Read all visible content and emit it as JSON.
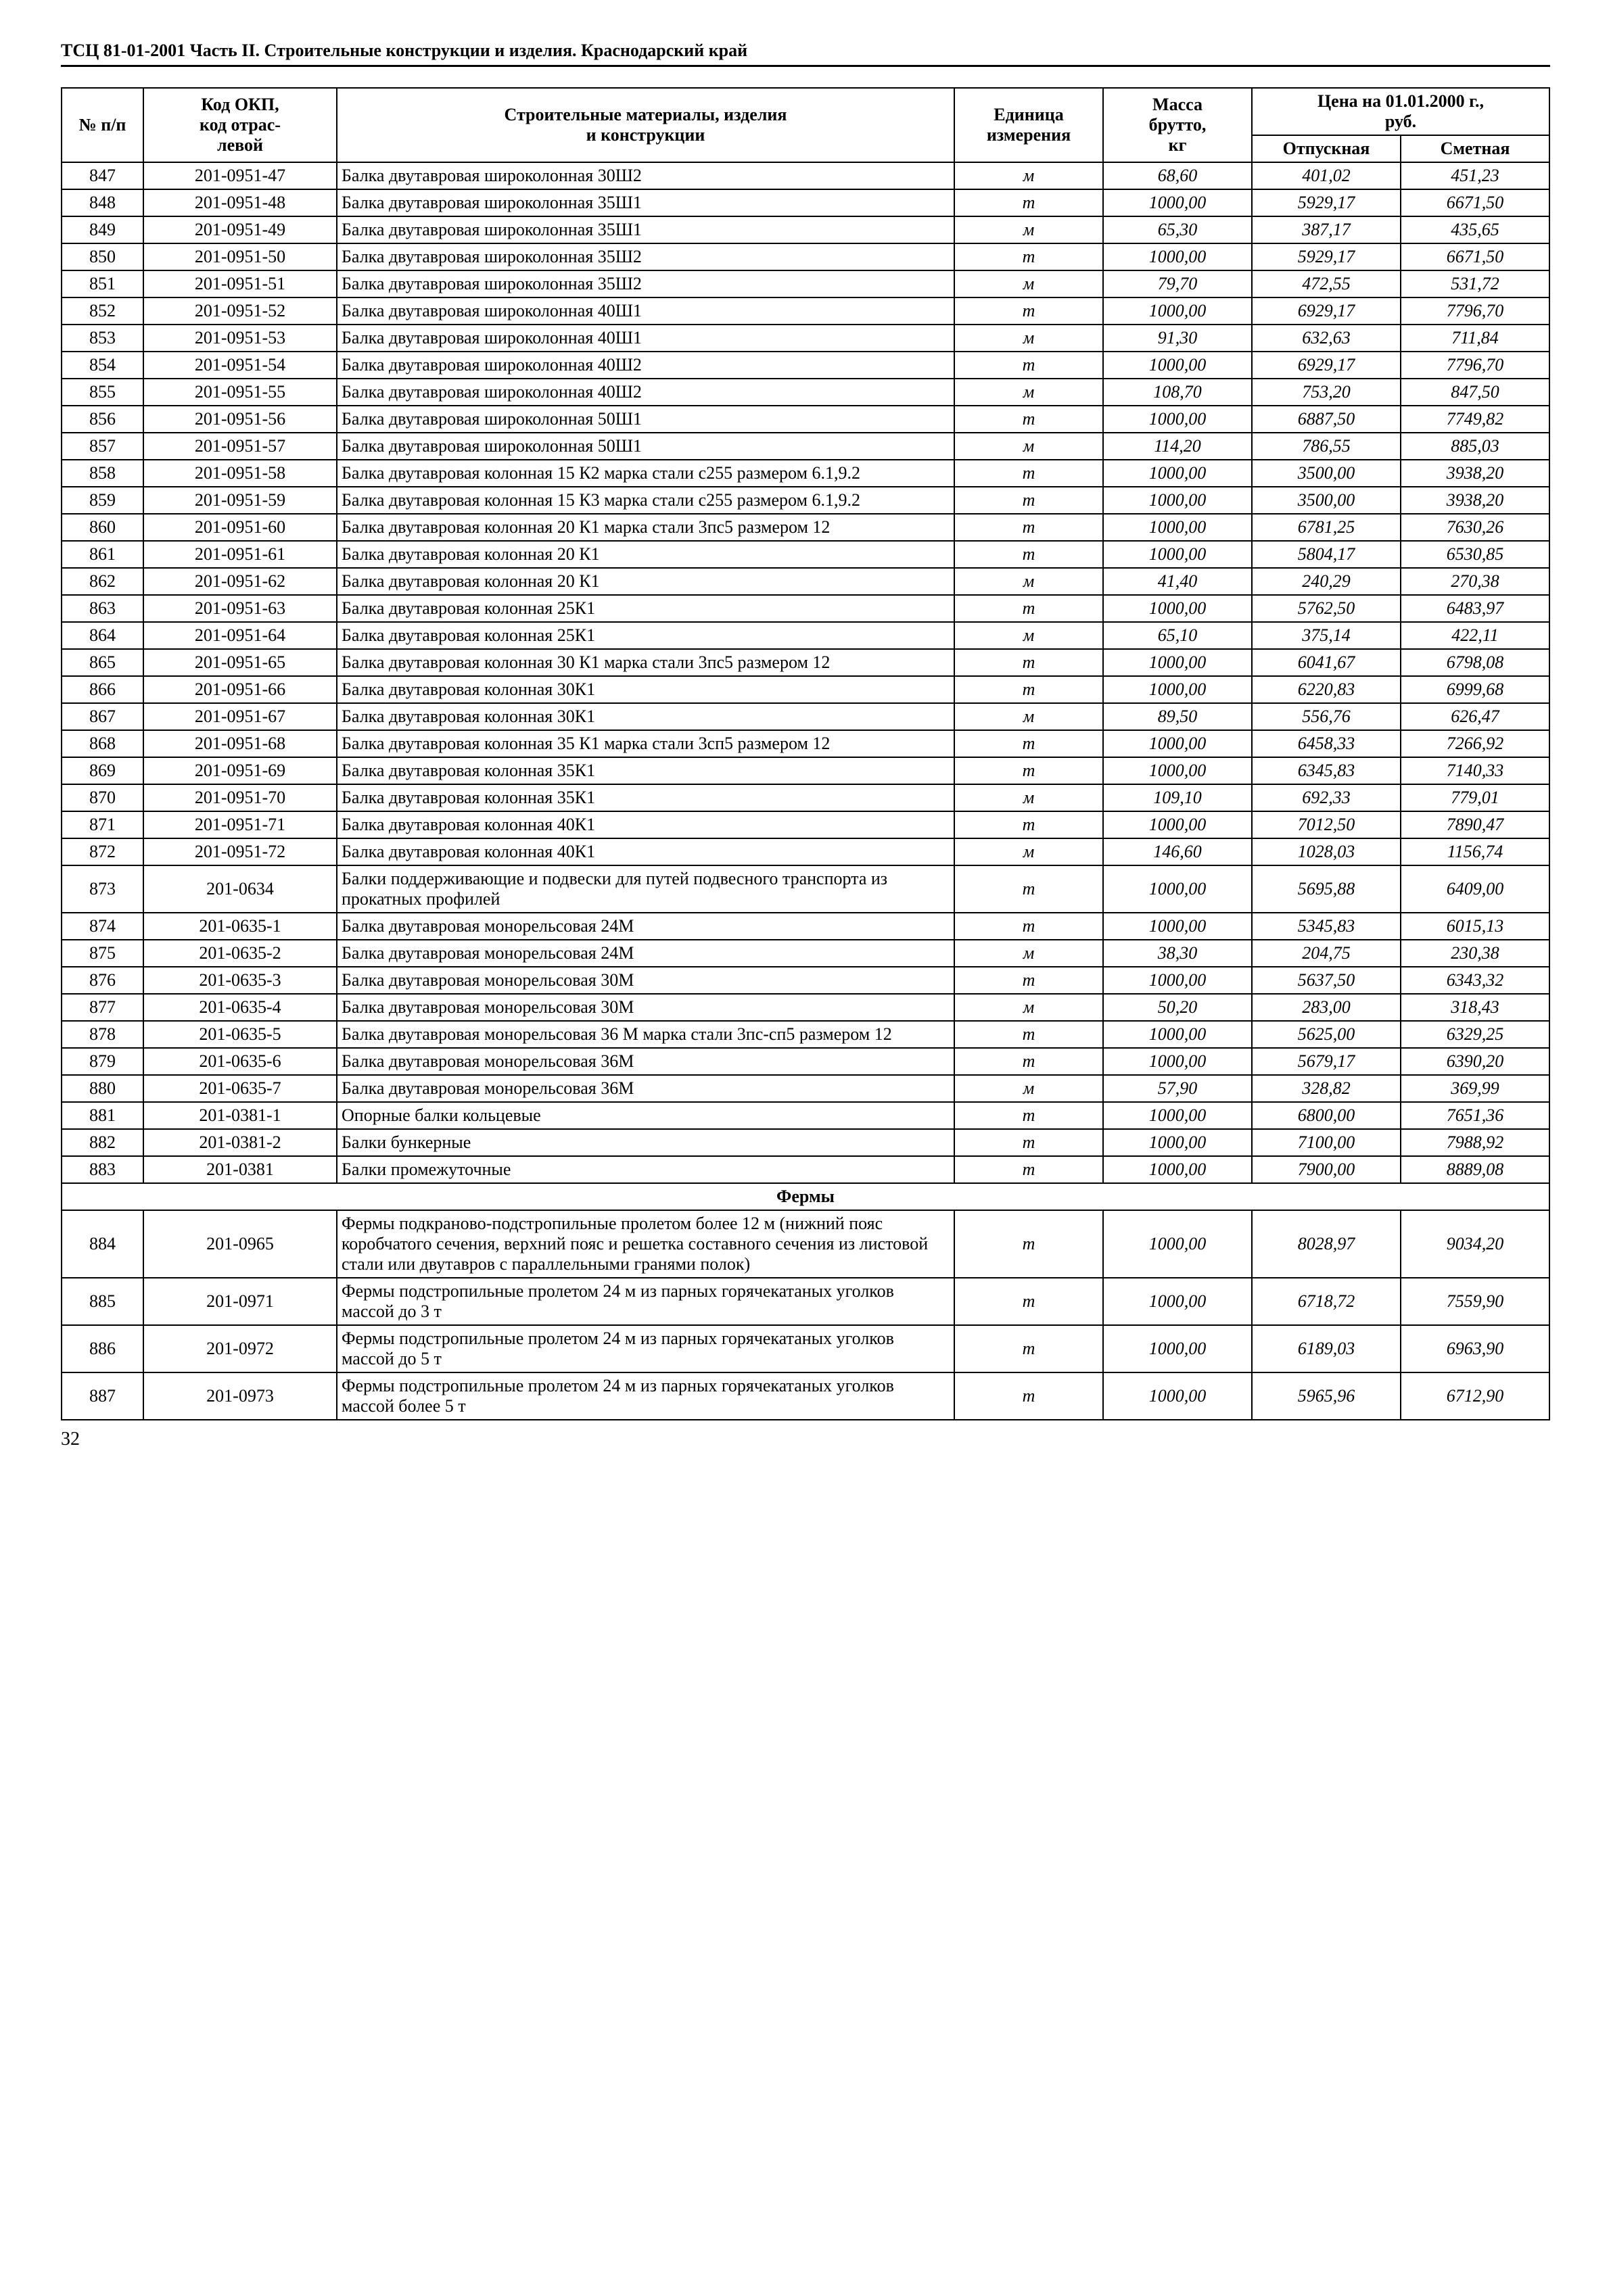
{
  "header": "ТСЦ 81-01-2001 Часть II. Строительные конструкции и изделия. Краснодарский край",
  "page_number": "32",
  "columns": {
    "num": "№ п/п",
    "code_top": "Код ОКП,",
    "code_mid": "код отрас-",
    "code_bot": "левой",
    "name_top": "Строительные материалы, изделия",
    "name_bot": "и конструкции",
    "unit_top": "Единица",
    "unit_bot": "измерения",
    "mass_top": "Масса",
    "mass_mid": "брутто,",
    "mass_bot": "кг",
    "price_top": "Цена на 01.01.2000 г.,",
    "price_mid": "руб.",
    "price_left": "Отпускная",
    "price_right": "Сметная"
  },
  "section_fermy": "Фермы",
  "rows": [
    {
      "n": "847",
      "c": "201-0951-47",
      "name": "Балка двутавровая широколонная 30Ш2",
      "u": "м",
      "m": "68,60",
      "p1": "401,02",
      "p2": "451,23"
    },
    {
      "n": "848",
      "c": "201-0951-48",
      "name": "Балка двутавровая широколонная 35Ш1",
      "u": "т",
      "m": "1000,00",
      "p1": "5929,17",
      "p2": "6671,50"
    },
    {
      "n": "849",
      "c": "201-0951-49",
      "name": "Балка двутавровая широколонная 35Ш1",
      "u": "м",
      "m": "65,30",
      "p1": "387,17",
      "p2": "435,65"
    },
    {
      "n": "850",
      "c": "201-0951-50",
      "name": "Балка двутавровая широколонная 35Ш2",
      "u": "т",
      "m": "1000,00",
      "p1": "5929,17",
      "p2": "6671,50"
    },
    {
      "n": "851",
      "c": "201-0951-51",
      "name": "Балка двутавровая широколонная 35Ш2",
      "u": "м",
      "m": "79,70",
      "p1": "472,55",
      "p2": "531,72"
    },
    {
      "n": "852",
      "c": "201-0951-52",
      "name": "Балка двутавровая широколонная 40Ш1",
      "u": "т",
      "m": "1000,00",
      "p1": "6929,17",
      "p2": "7796,70"
    },
    {
      "n": "853",
      "c": "201-0951-53",
      "name": "Балка двутавровая широколонная 40Ш1",
      "u": "м",
      "m": "91,30",
      "p1": "632,63",
      "p2": "711,84"
    },
    {
      "n": "854",
      "c": "201-0951-54",
      "name": "Балка двутавровая широколонная 40Ш2",
      "u": "т",
      "m": "1000,00",
      "p1": "6929,17",
      "p2": "7796,70"
    },
    {
      "n": "855",
      "c": "201-0951-55",
      "name": "Балка двутавровая широколонная 40Ш2",
      "u": "м",
      "m": "108,70",
      "p1": "753,20",
      "p2": "847,50"
    },
    {
      "n": "856",
      "c": "201-0951-56",
      "name": "Балка двутавровая широколонная 50Ш1",
      "u": "т",
      "m": "1000,00",
      "p1": "6887,50",
      "p2": "7749,82"
    },
    {
      "n": "857",
      "c": "201-0951-57",
      "name": "Балка двутавровая широколонная 50Ш1",
      "u": "м",
      "m": "114,20",
      "p1": "786,55",
      "p2": "885,03"
    },
    {
      "n": "858",
      "c": "201-0951-58",
      "name": "Балка двутавровая колонная 15 К2 марка стали с255 размером 6.1,9.2",
      "u": "т",
      "m": "1000,00",
      "p1": "3500,00",
      "p2": "3938,20"
    },
    {
      "n": "859",
      "c": "201-0951-59",
      "name": "Балка двутавровая колонная 15 К3 марка стали с255 размером 6.1,9.2",
      "u": "т",
      "m": "1000,00",
      "p1": "3500,00",
      "p2": "3938,20"
    },
    {
      "n": "860",
      "c": "201-0951-60",
      "name": "Балка двутавровая колонная 20 К1 марка стали 3пс5 размером 12",
      "u": "т",
      "m": "1000,00",
      "p1": "6781,25",
      "p2": "7630,26"
    },
    {
      "n": "861",
      "c": "201-0951-61",
      "name": "Балка двутавровая колонная 20 К1",
      "u": "т",
      "m": "1000,00",
      "p1": "5804,17",
      "p2": "6530,85"
    },
    {
      "n": "862",
      "c": "201-0951-62",
      "name": "Балка двутавровая колонная 20 К1",
      "u": "м",
      "m": "41,40",
      "p1": "240,29",
      "p2": "270,38"
    },
    {
      "n": "863",
      "c": "201-0951-63",
      "name": "Балка двутавровая колонная 25К1",
      "u": "т",
      "m": "1000,00",
      "p1": "5762,50",
      "p2": "6483,97"
    },
    {
      "n": "864",
      "c": "201-0951-64",
      "name": "Балка двутавровая колонная 25К1",
      "u": "м",
      "m": "65,10",
      "p1": "375,14",
      "p2": "422,11"
    },
    {
      "n": "865",
      "c": "201-0951-65",
      "name": "Балка двутавровая колонная 30 К1 марка стали 3пс5 размером 12",
      "u": "т",
      "m": "1000,00",
      "p1": "6041,67",
      "p2": "6798,08"
    },
    {
      "n": "866",
      "c": "201-0951-66",
      "name": "Балка двутавровая колонная 30К1",
      "u": "т",
      "m": "1000,00",
      "p1": "6220,83",
      "p2": "6999,68"
    },
    {
      "n": "867",
      "c": "201-0951-67",
      "name": "Балка двутавровая колонная 30К1",
      "u": "м",
      "m": "89,50",
      "p1": "556,76",
      "p2": "626,47"
    },
    {
      "n": "868",
      "c": "201-0951-68",
      "name": "Балка двутавровая колонная 35 К1 марка стали 3сп5 размером 12",
      "u": "т",
      "m": "1000,00",
      "p1": "6458,33",
      "p2": "7266,92"
    },
    {
      "n": "869",
      "c": "201-0951-69",
      "name": "Балка двутавровая колонная 35К1",
      "u": "т",
      "m": "1000,00",
      "p1": "6345,83",
      "p2": "7140,33"
    },
    {
      "n": "870",
      "c": "201-0951-70",
      "name": "Балка двутавровая колонная 35К1",
      "u": "м",
      "m": "109,10",
      "p1": "692,33",
      "p2": "779,01"
    },
    {
      "n": "871",
      "c": "201-0951-71",
      "name": "Балка двутавровая колонная 40К1",
      "u": "т",
      "m": "1000,00",
      "p1": "7012,50",
      "p2": "7890,47"
    },
    {
      "n": "872",
      "c": "201-0951-72",
      "name": "Балка двутавровая колонная 40К1",
      "u": "м",
      "m": "146,60",
      "p1": "1028,03",
      "p2": "1156,74"
    },
    {
      "n": "873",
      "c": "201-0634",
      "name": "Балки поддерживающие и подвески для путей подвесного транспорта из прокатных профилей",
      "u": "т",
      "m": "1000,00",
      "p1": "5695,88",
      "p2": "6409,00"
    },
    {
      "n": "874",
      "c": "201-0635-1",
      "name": "Балка двутавровая монорельсовая 24М",
      "u": "т",
      "m": "1000,00",
      "p1": "5345,83",
      "p2": "6015,13"
    },
    {
      "n": "875",
      "c": "201-0635-2",
      "name": "Балка двутавровая монорельсовая 24М",
      "u": "м",
      "m": "38,30",
      "p1": "204,75",
      "p2": "230,38"
    },
    {
      "n": "876",
      "c": "201-0635-3",
      "name": "Балка двутавровая монорельсовая 30М",
      "u": "т",
      "m": "1000,00",
      "p1": "5637,50",
      "p2": "6343,32"
    },
    {
      "n": "877",
      "c": "201-0635-4",
      "name": "Балка двутавровая монорельсовая 30М",
      "u": "м",
      "m": "50,20",
      "p1": "283,00",
      "p2": "318,43"
    },
    {
      "n": "878",
      "c": "201-0635-5",
      "name": "Балка двутавровая монорельсовая 36 М марка стали 3пс-сп5 размером 12",
      "u": "т",
      "m": "1000,00",
      "p1": "5625,00",
      "p2": "6329,25"
    },
    {
      "n": "879",
      "c": "201-0635-6",
      "name": "Балка двутавровая монорельсовая 36М",
      "u": "т",
      "m": "1000,00",
      "p1": "5679,17",
      "p2": "6390,20"
    },
    {
      "n": "880",
      "c": "201-0635-7",
      "name": "Балка двутавровая монорельсовая 36М",
      "u": "м",
      "m": "57,90",
      "p1": "328,82",
      "p2": "369,99"
    },
    {
      "n": "881",
      "c": "201-0381-1",
      "name": "Опорные балки кольцевые",
      "u": "т",
      "m": "1000,00",
      "p1": "6800,00",
      "p2": "7651,36"
    },
    {
      "n": "882",
      "c": "201-0381-2",
      "name": "Балки бункерные",
      "u": "т",
      "m": "1000,00",
      "p1": "7100,00",
      "p2": "7988,92"
    },
    {
      "n": "883",
      "c": "201-0381",
      "name": "Балки промежуточные",
      "u": "т",
      "m": "1000,00",
      "p1": "7900,00",
      "p2": "8889,08"
    }
  ],
  "rows2": [
    {
      "n": "884",
      "c": "201-0965",
      "name": "Фермы подкраново-подстропильные пролетом более 12 м (нижний пояс коробчатого сечения, верхний пояс и решетка составного сечения из листовой стали или двутавров с параллельными гранями полок)",
      "u": "т",
      "m": "1000,00",
      "p1": "8028,97",
      "p2": "9034,20"
    },
    {
      "n": "885",
      "c": "201-0971",
      "name": "Фермы подстропильные пролетом 24 м из парных горячекатаных уголков массой до 3 т",
      "u": "т",
      "m": "1000,00",
      "p1": "6718,72",
      "p2": "7559,90"
    },
    {
      "n": "886",
      "c": "201-0972",
      "name": "Фермы подстропильные пролетом 24 м из парных горячекатаных уголков массой до 5 т",
      "u": "т",
      "m": "1000,00",
      "p1": "6189,03",
      "p2": "6963,90"
    },
    {
      "n": "887",
      "c": "201-0973",
      "name": "Фермы подстропильные пролетом 24 м из парных горячекатаных уголков массой более 5 т",
      "u": "т",
      "m": "1000,00",
      "p1": "5965,96",
      "p2": "6712,90"
    }
  ]
}
